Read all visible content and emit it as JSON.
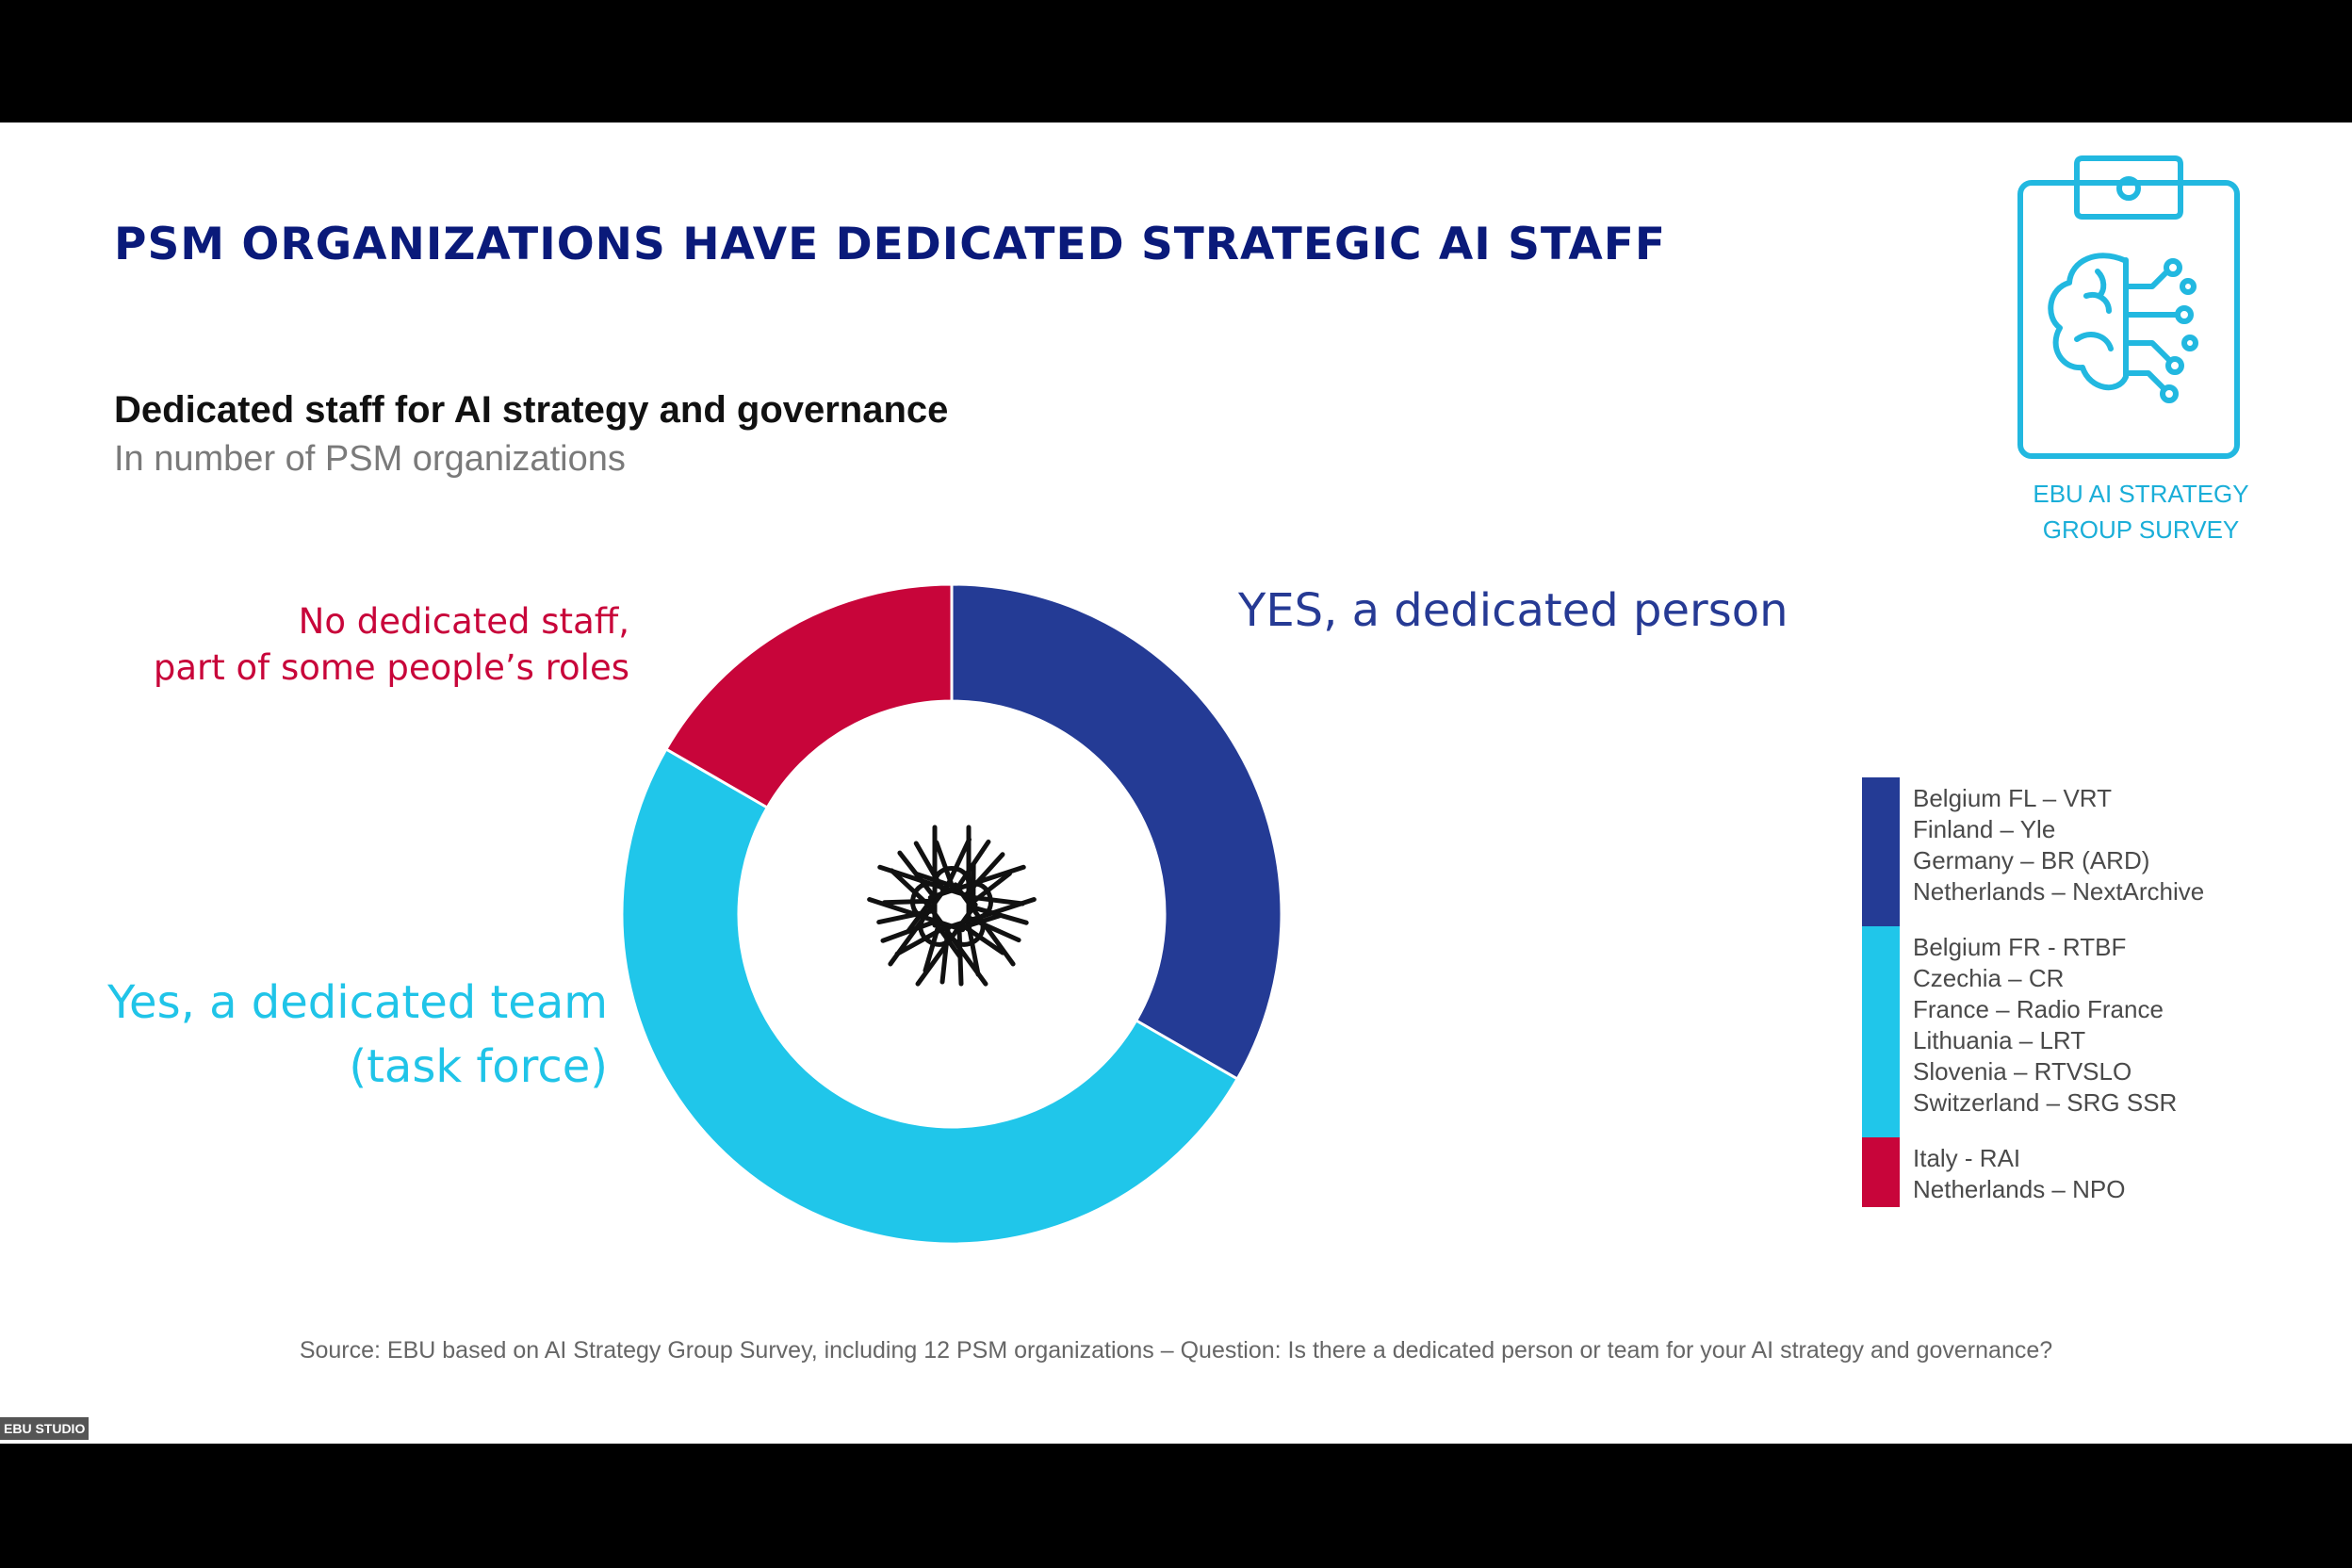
{
  "slide": {
    "title": "PSM ORGANIZATIONS HAVE DEDICATED STRATEGIC AI STAFF",
    "badge": {
      "icon": "clipboard-brain-icon",
      "line1": "EBU AI STRATEGY",
      "line2": "GROUP SURVEY"
    },
    "source": "Source: EBU based on AI Strategy Group Survey, including 12 PSM organizations – Question: Is there a dedicated person or team for your AI strategy and governance?",
    "studio_tag": "EBU STUDIO"
  },
  "chart_data": {
    "type": "pie",
    "donut": true,
    "title": "Dedicated staff for AI strategy and governance",
    "subtitle": "In number of PSM organizations",
    "center_icon": "joined-hands-icon",
    "series": [
      {
        "label": "YES, a dedicated person",
        "value": 4,
        "color": "#243b95",
        "organizations": [
          "Belgium FL – VRT",
          "Finland – Yle",
          "Germany – BR (ARD)",
          "Netherlands – NextArchive"
        ]
      },
      {
        "label_lines": [
          "Yes, a dedicated team",
          "(task force)"
        ],
        "value": 6,
        "color": "#20c6ea",
        "organizations": [
          "Belgium FR - RTBF",
          "Czechia – CR",
          "France – Radio France",
          "Lithuania – LRT",
          "Slovenia – RTVSLO",
          "Switzerland – SRG SSR"
        ]
      },
      {
        "label_lines": [
          "No dedicated staff,",
          "part of some people’s roles"
        ],
        "value": 2,
        "color": "#c8053a",
        "organizations": [
          "Italy - RAI",
          "Netherlands – NPO"
        ]
      }
    ]
  }
}
